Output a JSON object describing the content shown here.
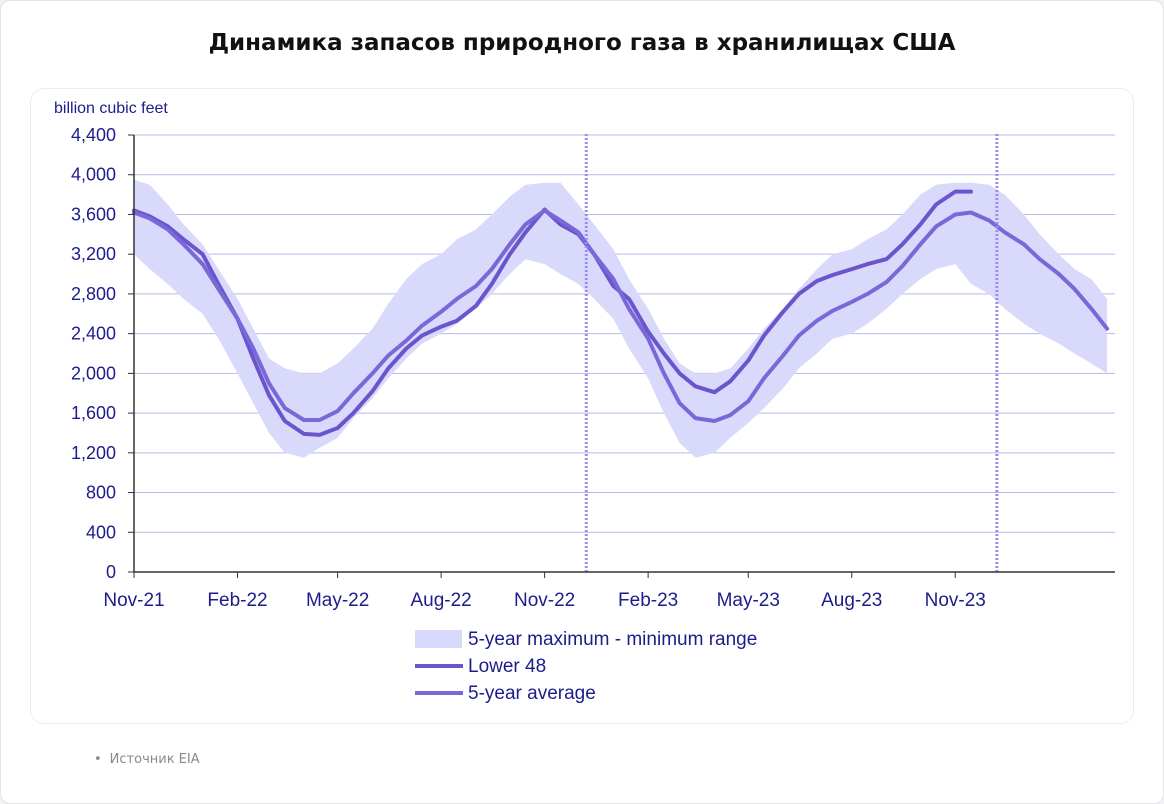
{
  "title": "Динамика запасов природного газа в хранилищах США",
  "source": "Источник EIA",
  "colors": {
    "band": "#d9d9fb",
    "lower48": "#6c54cc",
    "avg": "#7a68d8",
    "axis_text": "#1c1c8c",
    "grid": "#b9b9ea",
    "marker": "#9b8cf0"
  },
  "chart_data": {
    "type": "line",
    "ylabel": "billion cubic feet",
    "ylim": [
      0,
      4400
    ],
    "yticks": [
      0,
      400,
      800,
      1200,
      1600,
      2000,
      2400,
      2800,
      3200,
      3600,
      4000,
      4400
    ],
    "ytick_labels": [
      "0",
      "400",
      "800",
      "1,200",
      "1,600",
      "2,000",
      "2,400",
      "2,800",
      "3,200",
      "3,600",
      "4,000",
      "4,400"
    ],
    "xlim": [
      "2021-11-01",
      "2024-03-22"
    ],
    "xticks": [
      "2021-11-01",
      "2022-02-01",
      "2022-05-01",
      "2022-08-01",
      "2022-11-01",
      "2023-02-01",
      "2023-05-01",
      "2023-08-01",
      "2023-11-01"
    ],
    "xtick_labels": [
      "Nov-21",
      "Feb-22",
      "May-22",
      "Aug-22",
      "Nov-22",
      "Feb-23",
      "May-23",
      "Aug-23",
      "Nov-23"
    ],
    "vertical_markers": [
      "2022-12-08",
      "2023-12-08"
    ],
    "grid": "horizontal",
    "legend_position": "bottom-center",
    "legend": [
      "5-year maximum - minimum range",
      "Lower 48",
      "5-year average"
    ],
    "series": [
      {
        "name": "5-year maximum - minimum range",
        "type": "range",
        "x": [
          "2021-11-01",
          "2021-11-15",
          "2021-12-01",
          "2021-12-15",
          "2022-01-01",
          "2022-01-15",
          "2022-02-01",
          "2022-02-15",
          "2022-03-01",
          "2022-03-15",
          "2022-04-01",
          "2022-04-15",
          "2022-05-01",
          "2022-05-15",
          "2022-06-01",
          "2022-06-15",
          "2022-07-01",
          "2022-07-15",
          "2022-08-01",
          "2022-08-15",
          "2022-09-01",
          "2022-09-15",
          "2022-10-01",
          "2022-10-15",
          "2022-11-01",
          "2022-11-15",
          "2022-12-01",
          "2022-12-15",
          "2023-01-01",
          "2023-01-15",
          "2023-02-01",
          "2023-02-15",
          "2023-03-01",
          "2023-03-15",
          "2023-04-01",
          "2023-04-15",
          "2023-05-01",
          "2023-05-15",
          "2023-06-01",
          "2023-06-15",
          "2023-07-01",
          "2023-07-15",
          "2023-08-01",
          "2023-08-15",
          "2023-09-01",
          "2023-09-15",
          "2023-10-01",
          "2023-10-15",
          "2023-11-01",
          "2023-11-15",
          "2023-12-01",
          "2023-12-15",
          "2024-01-01",
          "2024-01-15",
          "2024-02-01",
          "2024-02-15",
          "2024-03-01",
          "2024-03-15"
        ],
        "max": [
          3950,
          3900,
          3700,
          3500,
          3300,
          3050,
          2750,
          2450,
          2150,
          2050,
          2000,
          2000,
          2100,
          2250,
          2450,
          2700,
          2950,
          3100,
          3200,
          3350,
          3450,
          3600,
          3780,
          3900,
          3920,
          3920,
          3700,
          3500,
          3250,
          2950,
          2650,
          2350,
          2100,
          2000,
          2000,
          2050,
          2250,
          2450,
          2650,
          2850,
          3050,
          3200,
          3250,
          3350,
          3450,
          3600,
          3800,
          3900,
          3920,
          3920,
          3900,
          3800,
          3600,
          3400,
          3200,
          3050,
          2950,
          2750
        ],
        "min": [
          3200,
          3050,
          2900,
          2750,
          2600,
          2350,
          2000,
          1700,
          1400,
          1200,
          1150,
          1250,
          1350,
          1550,
          1750,
          1950,
          2150,
          2300,
          2400,
          2500,
          2650,
          2800,
          3000,
          3150,
          3100,
          3000,
          2900,
          2750,
          2550,
          2250,
          1950,
          1600,
          1300,
          1150,
          1200,
          1350,
          1500,
          1650,
          1850,
          2050,
          2200,
          2350,
          2400,
          2500,
          2650,
          2800,
          2950,
          3050,
          3100,
          2900,
          2800,
          2650,
          2500,
          2400,
          2300,
          2200,
          2100,
          2000
        ]
      },
      {
        "name": "Lower 48",
        "x": [
          "2021-11-01",
          "2021-11-15",
          "2021-12-01",
          "2021-12-15",
          "2022-01-01",
          "2022-01-15",
          "2022-02-01",
          "2022-02-15",
          "2022-03-01",
          "2022-03-15",
          "2022-04-01",
          "2022-04-15",
          "2022-05-01",
          "2022-05-15",
          "2022-06-01",
          "2022-06-15",
          "2022-07-01",
          "2022-07-15",
          "2022-08-01",
          "2022-08-15",
          "2022-09-01",
          "2022-09-15",
          "2022-10-01",
          "2022-10-15",
          "2022-11-01",
          "2022-11-15",
          "2022-12-01",
          "2022-12-15",
          "2023-01-01",
          "2023-01-15",
          "2023-02-01",
          "2023-02-15",
          "2023-03-01",
          "2023-03-15",
          "2023-04-01",
          "2023-04-15",
          "2023-05-01",
          "2023-05-15",
          "2023-06-01",
          "2023-06-15",
          "2023-07-01",
          "2023-07-15",
          "2023-08-01",
          "2023-08-15",
          "2023-09-01",
          "2023-09-15",
          "2023-10-01",
          "2023-10-15",
          "2023-11-01",
          "2023-11-15"
        ],
        "values": [
          3640,
          3580,
          3480,
          3350,
          3200,
          2900,
          2550,
          2150,
          1780,
          1520,
          1390,
          1380,
          1450,
          1600,
          1820,
          2050,
          2250,
          2380,
          2470,
          2530,
          2680,
          2900,
          3200,
          3420,
          3650,
          3500,
          3400,
          3200,
          2880,
          2750,
          2420,
          2200,
          2000,
          1870,
          1810,
          1920,
          2130,
          2380,
          2620,
          2800,
          2930,
          2990,
          3050,
          3100,
          3150,
          3300,
          3500,
          3700,
          3830,
          3830
        ]
      },
      {
        "name": "5-year average",
        "x": [
          "2021-11-01",
          "2021-11-15",
          "2021-12-01",
          "2021-12-15",
          "2022-01-01",
          "2022-01-15",
          "2022-02-01",
          "2022-02-15",
          "2022-03-01",
          "2022-03-15",
          "2022-04-01",
          "2022-04-15",
          "2022-05-01",
          "2022-05-15",
          "2022-06-01",
          "2022-06-15",
          "2022-07-01",
          "2022-07-15",
          "2022-08-01",
          "2022-08-15",
          "2022-09-01",
          "2022-09-15",
          "2022-10-01",
          "2022-10-15",
          "2022-11-01",
          "2022-11-15",
          "2022-12-01",
          "2022-12-15",
          "2023-01-01",
          "2023-01-15",
          "2023-02-01",
          "2023-02-15",
          "2023-03-01",
          "2023-03-15",
          "2023-04-01",
          "2023-04-15",
          "2023-05-01",
          "2023-05-15",
          "2023-06-01",
          "2023-06-15",
          "2023-07-01",
          "2023-07-15",
          "2023-08-01",
          "2023-08-15",
          "2023-09-01",
          "2023-09-15",
          "2023-10-01",
          "2023-10-15",
          "2023-11-01",
          "2023-11-15",
          "2023-12-01",
          "2023-12-15",
          "2024-01-01",
          "2024-01-15",
          "2024-02-01",
          "2024-02-15",
          "2024-03-01",
          "2024-03-15"
        ],
        "values": [
          3620,
          3560,
          3450,
          3300,
          3100,
          2850,
          2550,
          2250,
          1900,
          1650,
          1530,
          1530,
          1620,
          1800,
          2000,
          2180,
          2330,
          2480,
          2620,
          2750,
          2880,
          3050,
          3300,
          3500,
          3640,
          3540,
          3420,
          3200,
          2950,
          2650,
          2350,
          2000,
          1700,
          1550,
          1520,
          1580,
          1720,
          1950,
          2180,
          2380,
          2530,
          2630,
          2720,
          2800,
          2920,
          3080,
          3300,
          3480,
          3600,
          3620,
          3540,
          3420,
          3300,
          3150,
          3000,
          2850,
          2650,
          2450
        ]
      }
    ]
  }
}
